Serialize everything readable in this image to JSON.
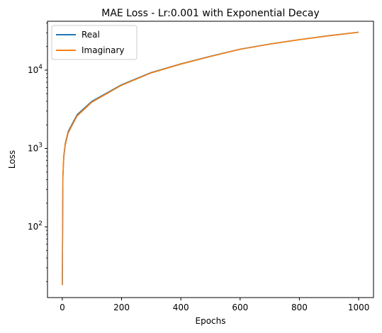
{
  "chart_data": {
    "type": "line",
    "title": "MAE Loss - Lr:0.001 with Exponential Decay",
    "xlabel": "Epochs",
    "ylabel": "Loss",
    "xscale": "linear",
    "yscale": "log",
    "xlim": [
      -50,
      1050
    ],
    "ylim": [
      12.5,
      42000
    ],
    "xticks": [
      0,
      200,
      400,
      600,
      800,
      1000
    ],
    "xtick_labels": [
      "0",
      "200",
      "400",
      "600",
      "800",
      "1000"
    ],
    "yticks": [
      100,
      1000,
      10000
    ],
    "ytick_labels": [
      {
        "base": "10",
        "exp": "2"
      },
      {
        "base": "10",
        "exp": "3"
      },
      {
        "base": "10",
        "exp": "4"
      }
    ],
    "grid": false,
    "legend_position": "top-left",
    "series": [
      {
        "name": "Real",
        "color": "#1f77b4",
        "x": [
          0,
          2,
          5,
          10,
          20,
          50,
          100,
          200,
          300,
          400,
          500,
          600,
          700,
          800,
          900,
          1000
        ],
        "y": [
          18,
          450,
          800,
          1150,
          1650,
          2700,
          4000,
          6500,
          9300,
          12000,
          15000,
          18500,
          21500,
          24500,
          27500,
          30500
        ]
      },
      {
        "name": "Imaginary",
        "color": "#ff7f0e",
        "x": [
          0,
          2,
          5,
          10,
          20,
          50,
          100,
          200,
          300,
          400,
          500,
          600,
          700,
          800,
          900,
          1000
        ],
        "y": [
          18,
          430,
          760,
          1100,
          1580,
          2600,
          3900,
          6400,
          9200,
          11900,
          14900,
          18400,
          21400,
          24400,
          27400,
          30400
        ]
      }
    ]
  }
}
